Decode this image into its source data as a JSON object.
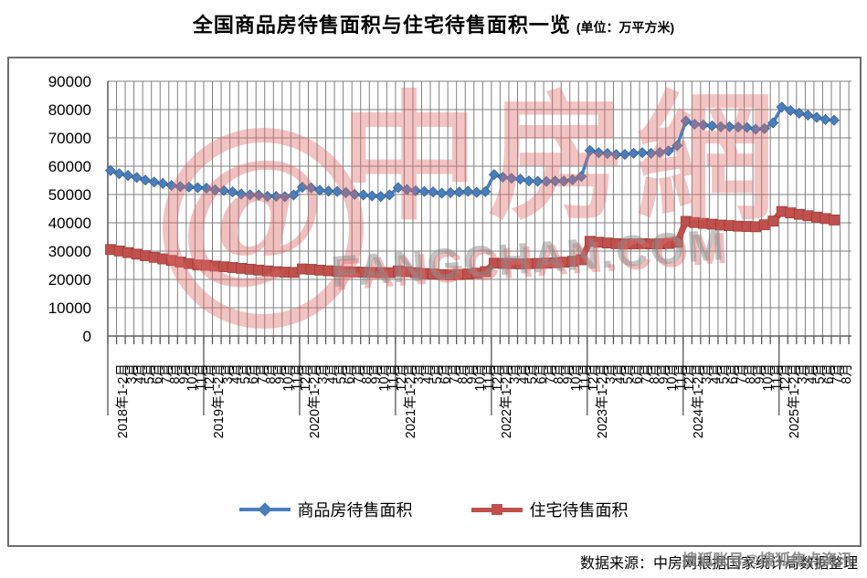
{
  "title": {
    "main": "全国商品房待售面积与住宅待售面积一览",
    "unit": "(单位：万平方米)"
  },
  "watermark": {
    "logo_glyph": "@",
    "brand": "中房網",
    "domain": "FANGCHAN.COM"
  },
  "footer": {
    "source": "数据来源：中房网根据国家统计局数据整理",
    "overlay": "搜狐账号@搜狐焦点资讯"
  },
  "legend": [
    {
      "label": "商品房待售面积",
      "color": "#4a7ebb",
      "marker": "diamond"
    },
    {
      "label": "住宅待售面积",
      "color": "#c0504d",
      "marker": "square"
    }
  ],
  "chart_data": {
    "type": "line",
    "title": "全国商品房待售面积与住宅待售面积一览",
    "unit": "万平方米",
    "grid": true,
    "legend_position": "bottom",
    "ylim": [
      0,
      90000
    ],
    "yticks": [
      90000,
      80000,
      70000,
      60000,
      50000,
      40000,
      30000,
      20000,
      10000,
      0
    ],
    "categories": [
      "2018年1-2月",
      "3月",
      "4月",
      "5月",
      "6月",
      "7月",
      "8月",
      "9月",
      "10月",
      "11月",
      "12月",
      "2019年1-2月",
      "3月",
      "4月",
      "5月",
      "6月",
      "7月",
      "8月",
      "9月",
      "10月",
      "11月",
      "12月",
      "2020年1-2月",
      "3月",
      "4月",
      "5月",
      "6月",
      "7月",
      "8月",
      "9月",
      "10月",
      "11月",
      "12月",
      "2021年1-2月",
      "3月",
      "4月",
      "5月",
      "6月",
      "7月",
      "8月",
      "9月",
      "10月",
      "11月",
      "12月",
      "2022年1-2月",
      "3月",
      "4月",
      "5月",
      "6月",
      "7月",
      "8月",
      "9月",
      "10月",
      "11月",
      "12月",
      "2023年1-2月",
      "3月",
      "4月",
      "5月",
      "6月",
      "7月",
      "8月",
      "9月",
      "10月",
      "11月",
      "12月",
      "2024年1-2月",
      "3月",
      "4月",
      "5月",
      "6月",
      "7月",
      "8月",
      "9月",
      "10月",
      "11月",
      "12月",
      "2025年1-2月",
      "3月",
      "4月",
      "5月",
      "6月",
      "7月",
      "8月"
    ],
    "series": [
      {
        "name": "商品房待售面积",
        "color": "#4a7ebb",
        "marker": "diamond",
        "values": [
          58468,
          57329,
          56711,
          56010,
          55083,
          54428,
          53873,
          53191,
          52789,
          52627,
          52414,
          52251,
          51646,
          51380,
          50928,
          50162,
          49876,
          49784,
          49346,
          49323,
          49221,
          49821,
          52563,
          52370,
          51512,
          51184,
          51083,
          50682,
          50052,
          49844,
          49492,
          49287,
          49850,
          52425,
          51752,
          51305,
          51087,
          50917,
          50457,
          50647,
          50852,
          51113,
          50759,
          51023,
          57026,
          56113,
          55735,
          55433,
          54784,
          54655,
          54605,
          54767,
          54734,
          55203,
          56366,
          65528,
          64770,
          64487,
          64120,
          64159,
          64564,
          64795,
          64537,
          64835,
          65385,
          67295,
          75969,
          74833,
          74553,
          74256,
          73894,
          73926,
          73831,
          73677,
          73057,
          73286,
          75327,
          80886,
          79654,
          78727,
          78028,
          77239,
          76486,
          76213
        ]
      },
      {
        "name": "住宅待售面积",
        "color": "#c0504d",
        "marker": "square",
        "values": [
          30565,
          30050,
          29480,
          28930,
          28370,
          27800,
          27250,
          26700,
          26140,
          25600,
          25091,
          24990,
          24700,
          24460,
          24200,
          23900,
          23600,
          23300,
          23000,
          22750,
          22560,
          22473,
          23690,
          23550,
          23280,
          23050,
          22850,
          22720,
          22620,
          22540,
          22480,
          22420,
          22379,
          23000,
          22700,
          22400,
          22100,
          21900,
          21700,
          21600,
          21700,
          21900,
          22200,
          22761,
          25748,
          25650,
          25560,
          25500,
          25560,
          25650,
          25750,
          25900,
          26100,
          26400,
          26947,
          33452,
          33130,
          32860,
          32620,
          32520,
          32560,
          32630,
          32540,
          32570,
          32680,
          33119,
          40500,
          40100,
          39800,
          39500,
          39200,
          39000,
          38800,
          38700,
          38600,
          39300,
          40600,
          44000,
          43500,
          43000,
          42500,
          42000,
          41500,
          41000
        ]
      }
    ]
  }
}
